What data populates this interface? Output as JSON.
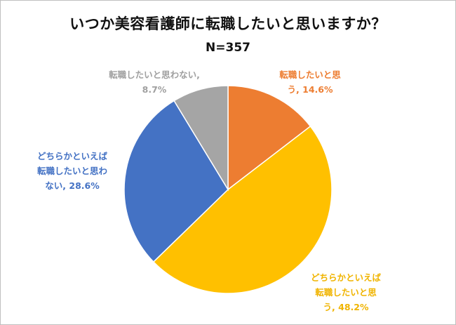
{
  "chart_data": {
    "type": "pie",
    "title": "いつか美容看護師に転職したいと思いますか？",
    "subtitle": "N=357",
    "slices": [
      {
        "name": "転職したいと思う",
        "value": 14.6,
        "color": "#ED7D31",
        "label_lines": [
          "転職したいと思",
          "う, 14.6%"
        ]
      },
      {
        "name": "どちらかといえば転職したいと思う",
        "value": 48.2,
        "color": "#FFC000",
        "label_lines": [
          "どちらかといえば",
          "転職したいと思",
          "う, 48.2%"
        ]
      },
      {
        "name": "どちらかといえば転職したいと思わない",
        "value": 28.6,
        "color": "#4472C4",
        "label_lines": [
          "どちらかといえば",
          "転職したいと思わ",
          "ない, 28.6%"
        ]
      },
      {
        "name": "転職したいと思わない",
        "value": 8.7,
        "color": "#A5A5A5",
        "label_lines": [
          "転職したいと思わない,",
          "8.7%"
        ]
      }
    ]
  }
}
